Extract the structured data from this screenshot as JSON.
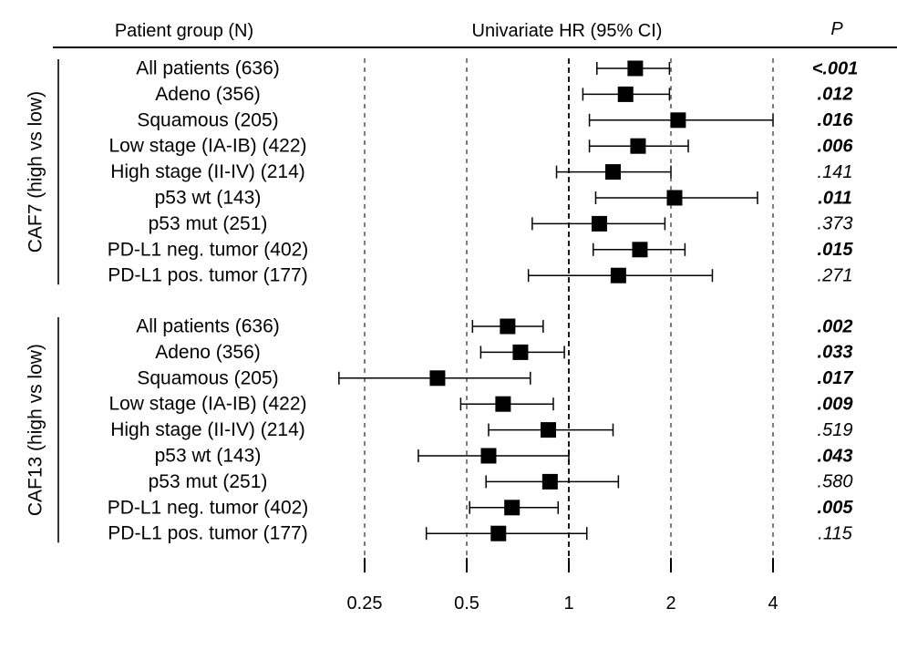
{
  "header": {
    "group_col": "Patient group (N)",
    "hr_col": "Univariate HR (95% CI)",
    "p_col": "P"
  },
  "chart_data": {
    "type": "forest",
    "title": "",
    "x_scale": "log2",
    "xlim": [
      0.2,
      4.4
    ],
    "x_ticks": [
      {
        "value": 0.25,
        "label": "0.25"
      },
      {
        "value": 0.5,
        "label": "0.5"
      },
      {
        "value": 1,
        "label": "1"
      },
      {
        "value": 2,
        "label": "2"
      },
      {
        "value": 4,
        "label": "4"
      }
    ],
    "reference_line": 1,
    "groups": [
      {
        "name": "CAF7 (high vs low)",
        "rows": [
          {
            "label": "All patients (636)",
            "hr": 1.57,
            "lo": 1.21,
            "hi": 1.98,
            "p": "<.001",
            "significant": true
          },
          {
            "label": "Adeno (356)",
            "hr": 1.47,
            "lo": 1.1,
            "hi": 1.98,
            "p": ".012",
            "significant": true
          },
          {
            "label": "Squamous (205)",
            "hr": 2.1,
            "lo": 1.15,
            "hi": 4.0,
            "p": ".016",
            "significant": true
          },
          {
            "label": "Low stage (IA-IB) (422)",
            "hr": 1.6,
            "lo": 1.15,
            "hi": 2.25,
            "p": ".006",
            "significant": true
          },
          {
            "label": "High stage (II-IV) (214)",
            "hr": 1.35,
            "lo": 0.92,
            "hi": 2.0,
            "p": ".141",
            "significant": false
          },
          {
            "label": "p53 wt (143)",
            "hr": 2.05,
            "lo": 1.2,
            "hi": 3.6,
            "p": ".011",
            "significant": true
          },
          {
            "label": "p53 mut (251)",
            "hr": 1.23,
            "lo": 0.78,
            "hi": 1.92,
            "p": ".373",
            "significant": false
          },
          {
            "label": "PD-L1 neg. tumor (402)",
            "hr": 1.62,
            "lo": 1.18,
            "hi": 2.2,
            "p": ".015",
            "significant": true
          },
          {
            "label": "PD-L1 pos. tumor (177)",
            "hr": 1.4,
            "lo": 0.76,
            "hi": 2.65,
            "p": ".271",
            "significant": false
          }
        ]
      },
      {
        "name": "CAF13 (high vs low)",
        "rows": [
          {
            "label": "All patients (636)",
            "hr": 0.66,
            "lo": 0.52,
            "hi": 0.84,
            "p": ".002",
            "significant": true
          },
          {
            "label": "Adeno (356)",
            "hr": 0.72,
            "lo": 0.55,
            "hi": 0.97,
            "p": ".033",
            "significant": true
          },
          {
            "label": "Squamous (205)",
            "hr": 0.41,
            "lo": 0.21,
            "hi": 0.77,
            "p": ".017",
            "significant": true
          },
          {
            "label": "Low stage (IA-IB) (422)",
            "hr": 0.64,
            "lo": 0.48,
            "hi": 0.9,
            "p": ".009",
            "significant": true
          },
          {
            "label": "High stage (II-IV) (214)",
            "hr": 0.87,
            "lo": 0.58,
            "hi": 1.35,
            "p": ".519",
            "significant": false
          },
          {
            "label": "p53 wt (143)",
            "hr": 0.58,
            "lo": 0.36,
            "hi": 1.0,
            "p": ".043",
            "significant": true
          },
          {
            "label": "p53 mut (251)",
            "hr": 0.88,
            "lo": 0.57,
            "hi": 1.4,
            "p": ".580",
            "significant": false
          },
          {
            "label": "PD-L1 neg. tumor (402)",
            "hr": 0.68,
            "lo": 0.51,
            "hi": 0.93,
            "p": ".005",
            "significant": true
          },
          {
            "label": "PD-L1 pos. tumor (177)",
            "hr": 0.62,
            "lo": 0.38,
            "hi": 1.13,
            "p": ".115",
            "significant": false
          }
        ]
      }
    ]
  }
}
